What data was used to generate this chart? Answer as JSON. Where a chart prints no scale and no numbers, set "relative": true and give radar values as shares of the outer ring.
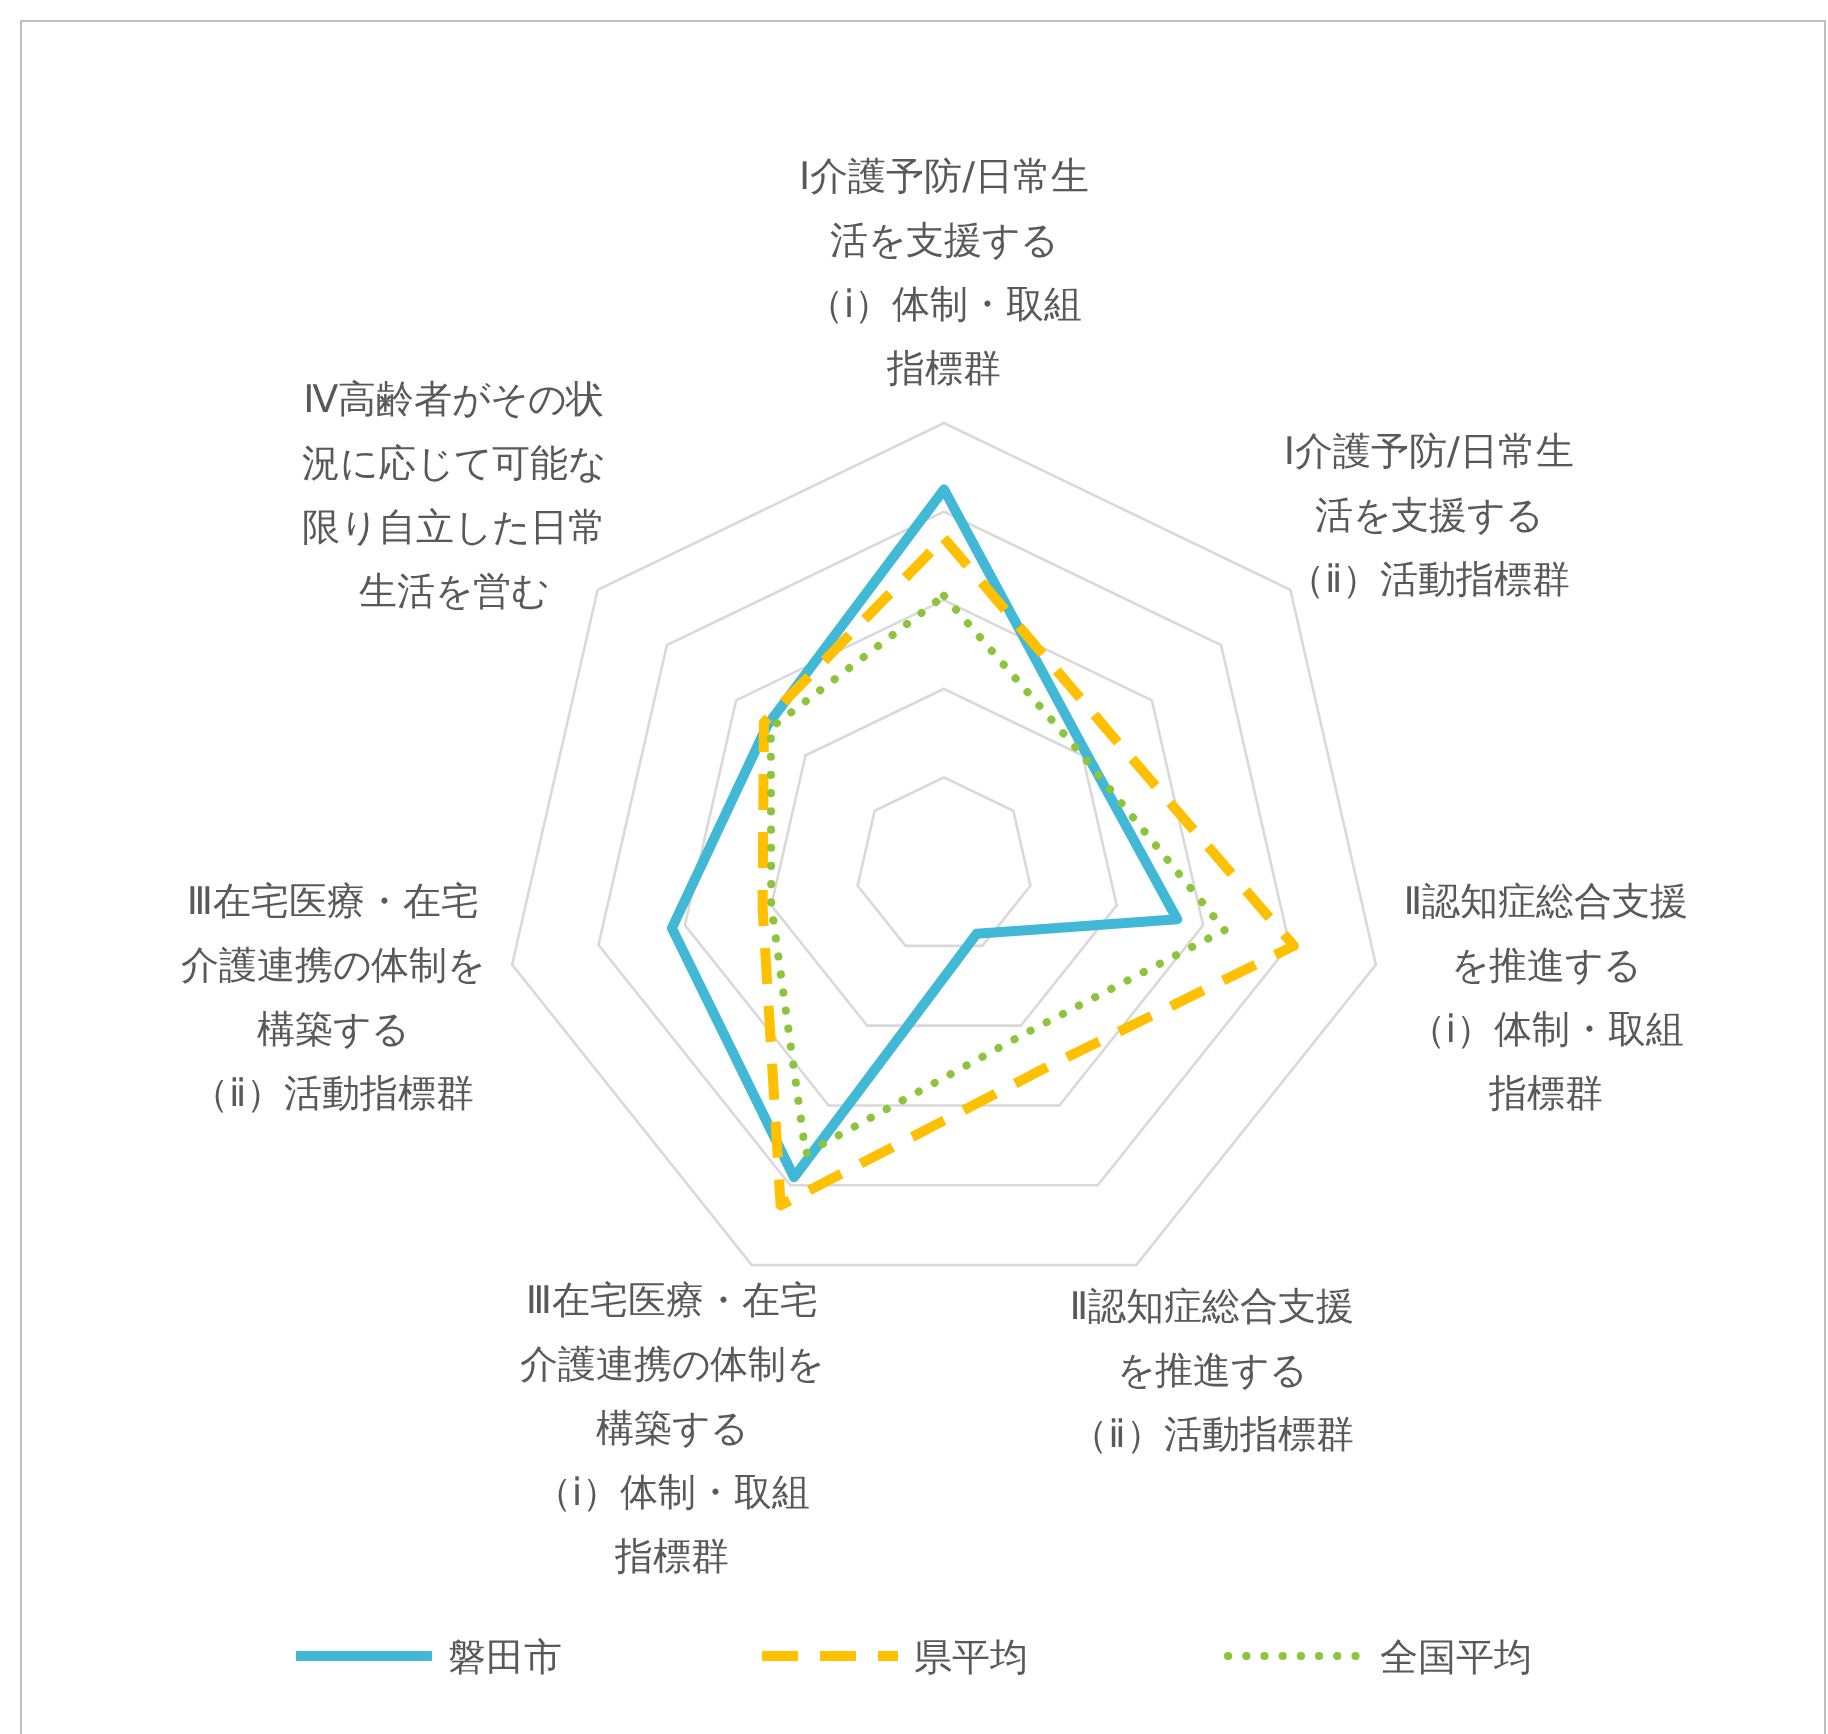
{
  "chart_data": {
    "type": "radar",
    "relative": true,
    "grid": true,
    "legend": "bottom",
    "categories": [
      "Ⅰ介護予防/日常生活を支援する（ⅰ）体制・取組指標群",
      "Ⅰ介護予防/日常生活を支援する（ⅱ）活動指標群",
      "Ⅱ認知症総合支援を推進する（ⅰ）体制・取組指標群",
      "Ⅱ認知症総合支援を推進する（ⅱ）活動指標群",
      "Ⅲ在宅医療・在宅介護連携の体制を構築する（ⅰ）体制・取組指標群",
      "Ⅲ在宅医療・在宅介護連携の体制を構築する（ⅱ）活動指標群",
      "Ⅳ高齢者がその状況に応じて可能な限り自立した日常生活を営む"
    ],
    "series": [
      {
        "name": "磐田市",
        "color": "#41b8d5",
        "line_style": "solid",
        "values": [
          0.85,
          0.41,
          0.54,
          0.17,
          0.78,
          0.63,
          0.51
        ]
      },
      {
        "name": "県平均",
        "color": "#ffc000",
        "line_style": "dashed",
        "values": [
          0.74,
          0.48,
          0.81,
          0.51,
          0.85,
          0.42,
          0.52
        ]
      },
      {
        "name": "全国平均",
        "color": "#8cc43c",
        "line_style": "dotted",
        "values": [
          0.61,
          0.4,
          0.65,
          0.42,
          0.72,
          0.4,
          0.5
        ]
      }
    ]
  }
}
